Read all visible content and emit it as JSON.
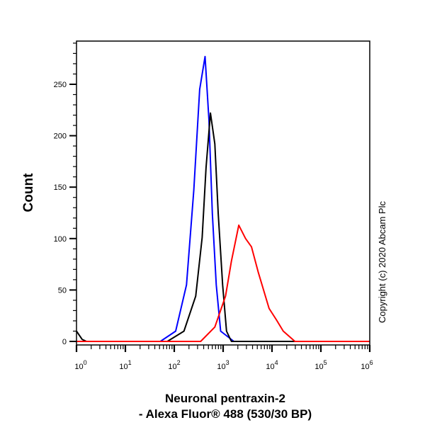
{
  "chart_data": {
    "type": "line",
    "title": "",
    "xlabel_line1": "Neuronal pentraxin-2",
    "xlabel_line2": "- Alexa Fluor® 488 (530/30 BP)",
    "ylabel": "Count",
    "annotation": "Copyright (c) 2020 Abcam Plc",
    "xscale": "log",
    "xlim": [
      1,
      1000000
    ],
    "ylim": [
      0,
      292
    ],
    "grid": false,
    "legend": "none",
    "xticks": [
      {
        "base": "10",
        "exp": "0"
      },
      {
        "base": "10",
        "exp": "1"
      },
      {
        "base": "10",
        "exp": "2"
      },
      {
        "base": "10",
        "exp": "3"
      },
      {
        "base": "10",
        "exp": "4"
      },
      {
        "base": "10",
        "exp": "5"
      },
      {
        "base": "10",
        "exp": "6"
      }
    ],
    "yticks": [
      "0",
      "50",
      "100",
      "150",
      "200",
      "250"
    ],
    "series": [
      {
        "color": "#0000ff",
        "points": [
          [
            1,
            0
          ],
          [
            52,
            0
          ],
          [
            107,
            10
          ],
          [
            178,
            55
          ],
          [
            251,
            147
          ],
          [
            331,
            245
          ],
          [
            427,
            277
          ],
          [
            513,
            215
          ],
          [
            603,
            124
          ],
          [
            724,
            55
          ],
          [
            891,
            10
          ],
          [
            1660,
            0
          ],
          [
            1000000,
            0
          ]
        ]
      },
      {
        "color": "#000000",
        "points": [
          [
            1,
            10
          ],
          [
            1.3,
            2
          ],
          [
            1.6,
            0
          ],
          [
            72,
            0
          ],
          [
            158,
            10
          ],
          [
            275,
            44
          ],
          [
            372,
            101
          ],
          [
            447,
            169
          ],
          [
            550,
            222
          ],
          [
            676,
            192
          ],
          [
            794,
            124
          ],
          [
            977,
            55
          ],
          [
            1175,
            10
          ],
          [
            1479,
            0
          ],
          [
            1000000,
            0
          ]
        ]
      },
      {
        "color": "#ff0000",
        "points": [
          [
            1,
            0
          ],
          [
            347,
            0
          ],
          [
            676,
            14
          ],
          [
            1122,
            44
          ],
          [
            1479,
            78
          ],
          [
            2089,
            113
          ],
          [
            2884,
            100
          ],
          [
            3802,
            92
          ],
          [
            5248,
            67
          ],
          [
            8710,
            32
          ],
          [
            12300,
            21
          ],
          [
            17000,
            10
          ],
          [
            29500,
            0
          ],
          [
            1000000,
            0
          ]
        ]
      }
    ]
  }
}
